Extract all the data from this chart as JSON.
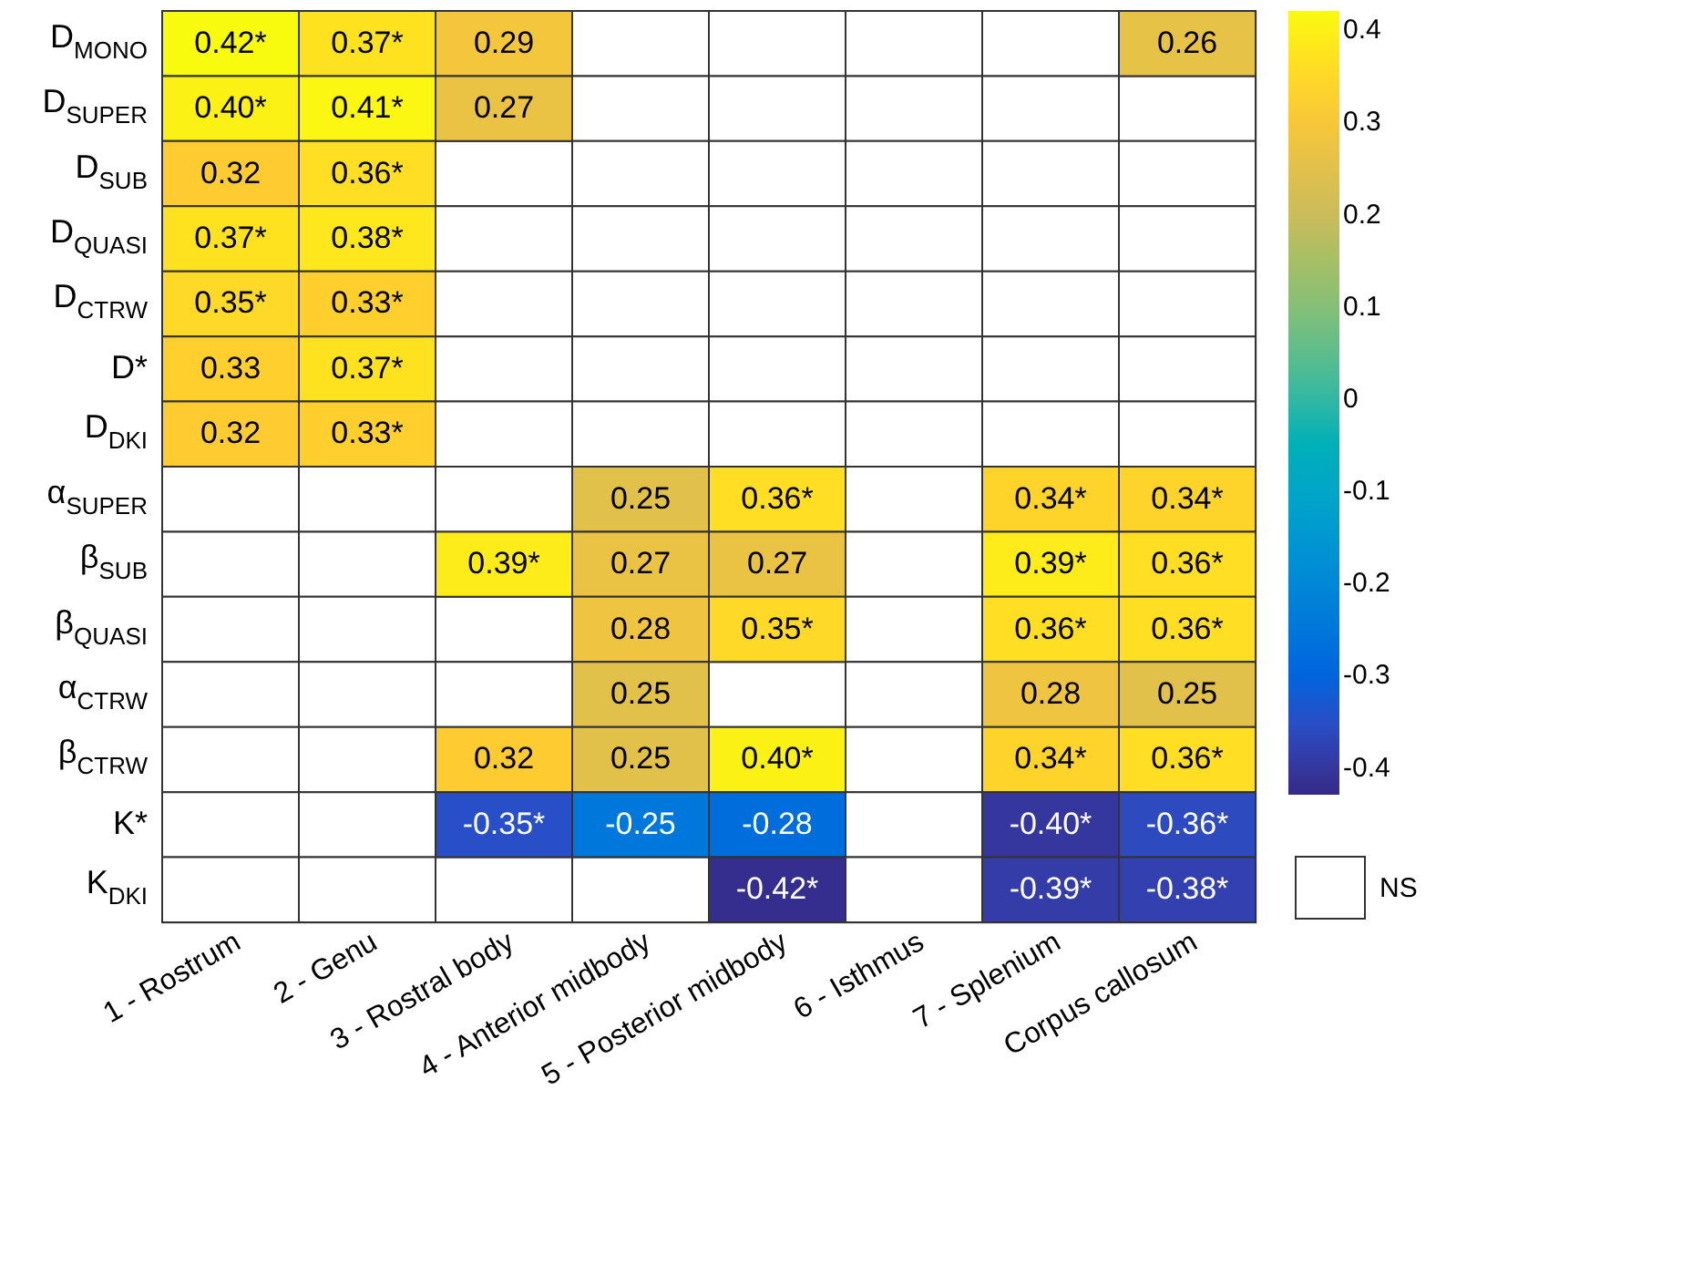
{
  "chart_data": {
    "type": "heatmap",
    "categories": [
      "1 - Rostrum",
      "2 - Genu",
      "3 - Rostral body",
      "4 - Anterior midbody",
      "5 - Posterior midbody",
      "6 - Isthmus",
      "7 - Splenium",
      "Corpus callosum"
    ],
    "y_categories": [
      "D$_{MONO}$",
      "D$_{SUPER}$",
      "D$_{SUB}$",
      "D$_{QUASI}$",
      "D$_{CTRW}$",
      "D*",
      "D$_{DKI}$",
      "α$_{SUPER}$",
      "β$_{SUB}$",
      "β$_{QUASI}$",
      "α$_{CTRW}$",
      "β$_{CTRW}$",
      "K*",
      "K$_{DKI}$"
    ],
    "cells": [
      [
        0.42,
        0.37,
        0.29,
        null,
        null,
        null,
        null,
        0.26
      ],
      [
        0.4,
        0.41,
        0.27,
        null,
        null,
        null,
        null,
        null
      ],
      [
        0.32,
        0.36,
        null,
        null,
        null,
        null,
        null,
        null
      ],
      [
        0.37,
        0.38,
        null,
        null,
        null,
        null,
        null,
        null
      ],
      [
        0.35,
        0.33,
        null,
        null,
        null,
        null,
        null,
        null
      ],
      [
        0.33,
        0.37,
        null,
        null,
        null,
        null,
        null,
        null
      ],
      [
        0.32,
        0.33,
        null,
        null,
        null,
        null,
        null,
        null
      ],
      [
        null,
        null,
        null,
        0.25,
        0.36,
        null,
        0.34,
        0.34
      ],
      [
        null,
        null,
        0.39,
        0.27,
        0.27,
        null,
        0.39,
        0.36
      ],
      [
        null,
        null,
        null,
        0.28,
        0.35,
        null,
        0.36,
        0.36
      ],
      [
        null,
        null,
        null,
        0.25,
        null,
        null,
        0.28,
        0.25
      ],
      [
        null,
        null,
        0.32,
        0.25,
        0.4,
        null,
        0.34,
        0.36
      ],
      [
        null,
        null,
        -0.35,
        -0.25,
        -0.28,
        null,
        -0.4,
        -0.36
      ],
      [
        null,
        null,
        null,
        null,
        -0.42,
        null,
        -0.39,
        -0.38
      ]
    ],
    "cell_labels": [
      [
        "0.42*",
        "0.37*",
        "0.29",
        null,
        null,
        null,
        null,
        "0.26"
      ],
      [
        "0.40*",
        "0.41*",
        "0.27",
        null,
        null,
        null,
        null,
        null
      ],
      [
        "0.32",
        "0.36*",
        null,
        null,
        null,
        null,
        null,
        null
      ],
      [
        "0.37*",
        "0.38*",
        null,
        null,
        null,
        null,
        null,
        null
      ],
      [
        "0.35*",
        "0.33*",
        null,
        null,
        null,
        null,
        null,
        null
      ],
      [
        "0.33",
        "0.37*",
        null,
        null,
        null,
        null,
        null,
        null
      ],
      [
        "0.32",
        "0.33*",
        null,
        null,
        null,
        null,
        null,
        null
      ],
      [
        null,
        null,
        null,
        "0.25",
        "0.36*",
        null,
        "0.34*",
        "0.34*"
      ],
      [
        null,
        null,
        "0.39*",
        "0.27",
        "0.27",
        null,
        "0.39*",
        "0.36*"
      ],
      [
        null,
        null,
        null,
        "0.28",
        "0.35*",
        null,
        "0.36*",
        "0.36*"
      ],
      [
        null,
        null,
        null,
        "0.25",
        null,
        null,
        "0.28",
        "0.25"
      ],
      [
        null,
        null,
        "0.32",
        "0.25",
        "0.40*",
        null,
        "0.34*",
        "0.36*"
      ],
      [
        null,
        null,
        "-0.35*",
        "-0.25",
        "-0.28",
        null,
        "-0.40*",
        "-0.36*"
      ],
      [
        null,
        null,
        null,
        null,
        "-0.42*",
        null,
        "-0.39*",
        "-0.38*"
      ]
    ],
    "clim": [
      -0.43,
      0.42
    ],
    "cticks": [
      -0.4,
      -0.3,
      -0.2,
      -0.1,
      0,
      0.1,
      0.2,
      0.3,
      0.4
    ],
    "annotations": [
      "NS"
    ]
  }
}
